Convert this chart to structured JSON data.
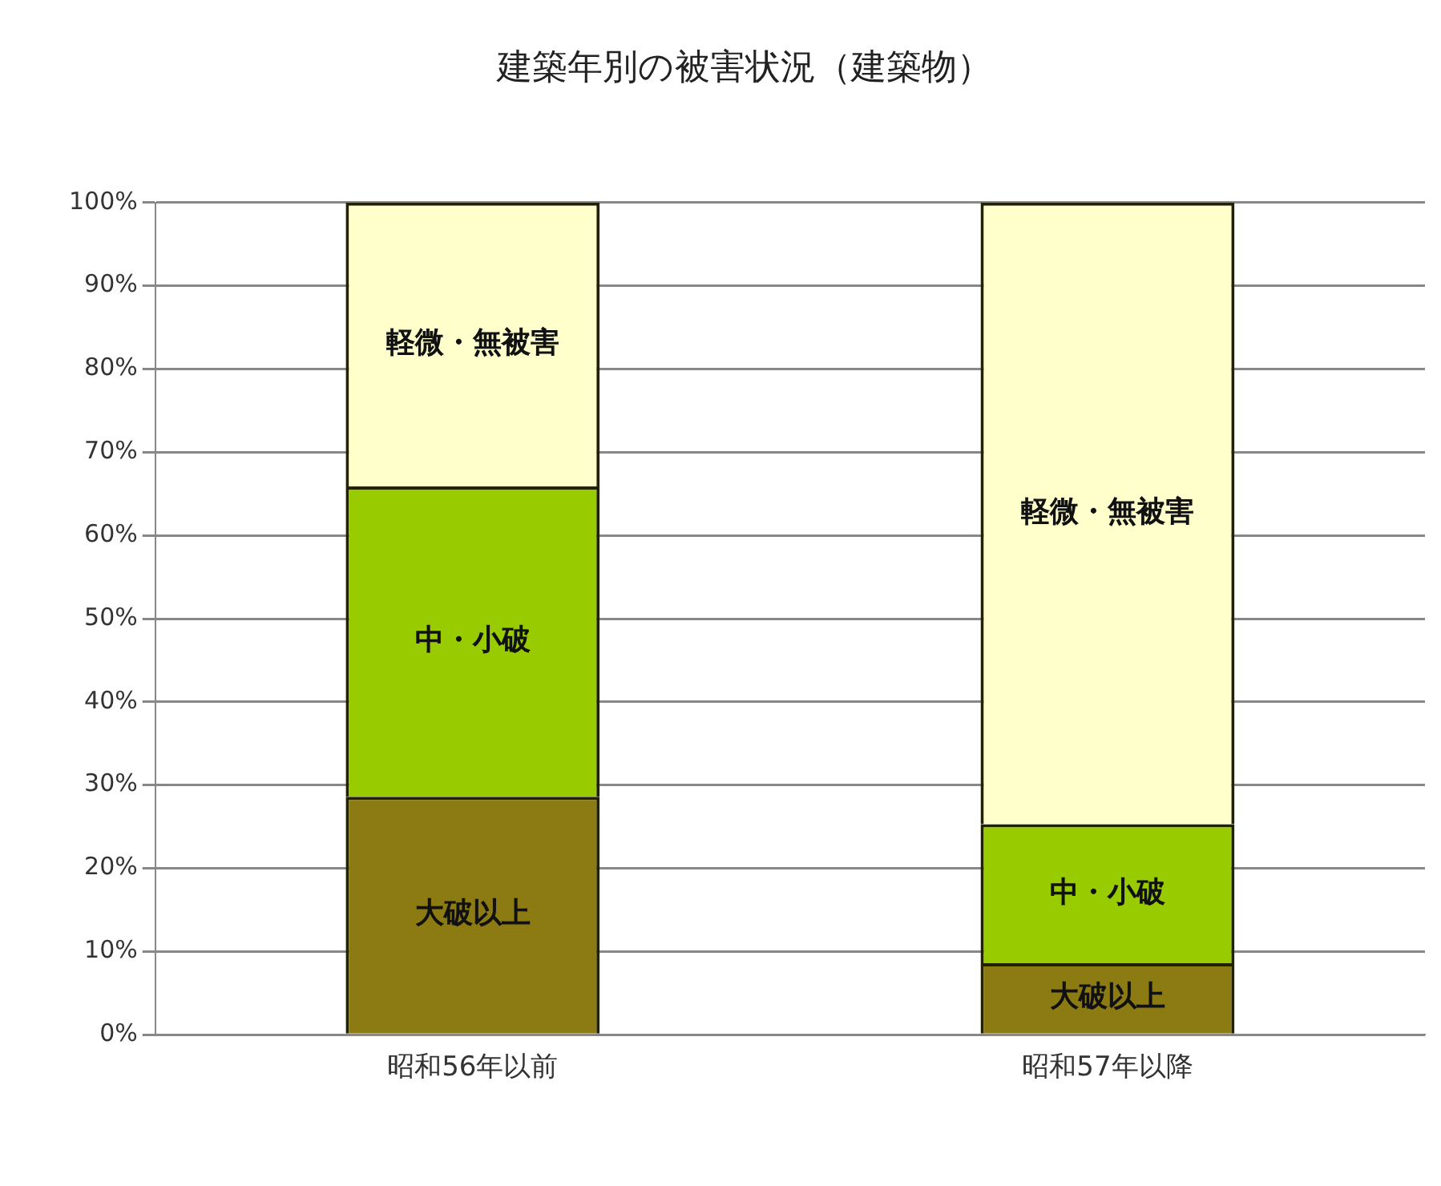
{
  "chart_data": {
    "type": "bar",
    "stacked": true,
    "title": "建築年別の被害状況（建築物）",
    "categories": [
      "昭和56年以前",
      "昭和57年以降"
    ],
    "series": [
      {
        "name": "大破以上",
        "color": "#8c7a12",
        "values": [
          28.6,
          8.6
        ]
      },
      {
        "name": "中・小破",
        "color": "#99cc00",
        "values": [
          37.3,
          16.7
        ]
      },
      {
        "name": "軽微・無被害",
        "color": "#ffffcc",
        "values": [
          34.1,
          74.7
        ]
      }
    ],
    "ylim": [
      0,
      100
    ],
    "yticks": [
      {
        "value": 0,
        "label": "0%"
      },
      {
        "value": 10,
        "label": "10%"
      },
      {
        "value": 20,
        "label": "20%"
      },
      {
        "value": 30,
        "label": "30%"
      },
      {
        "value": 40,
        "label": "40%"
      },
      {
        "value": 50,
        "label": "50%"
      },
      {
        "value": 60,
        "label": "60%"
      },
      {
        "value": 70,
        "label": "70%"
      },
      {
        "value": 80,
        "label": "80%"
      },
      {
        "value": 90,
        "label": "90%"
      },
      {
        "value": 100,
        "label": "100%"
      }
    ],
    "grid": "y",
    "legend": false
  }
}
